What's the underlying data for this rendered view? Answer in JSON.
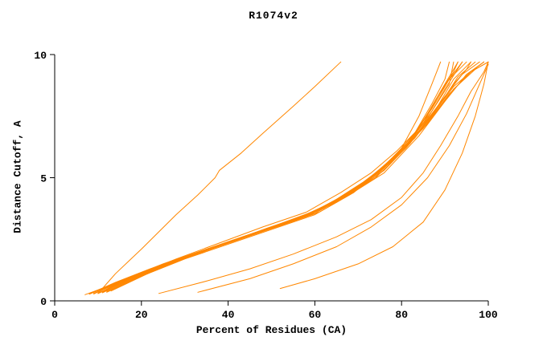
{
  "chart_data": {
    "type": "line",
    "title": "R1074v2",
    "xlabel": "Percent of Residues (CA)",
    "ylabel": "Distance Cutoff, A",
    "xlim": [
      0,
      100
    ],
    "ylim": [
      0,
      10
    ],
    "x_ticks": [
      0,
      20,
      40,
      60,
      80,
      100
    ],
    "y_ticks": [
      0,
      5,
      10
    ],
    "grid": false,
    "legend": false,
    "line_color": "#ff8700",
    "axis_color": "#000000",
    "series": [
      [
        [
          10,
          0.3
        ],
        [
          12,
          0.7
        ],
        [
          14,
          1.1
        ],
        [
          17,
          1.6
        ],
        [
          20,
          2.1
        ],
        [
          24,
          2.8
        ],
        [
          28,
          3.5
        ],
        [
          33,
          4.3
        ],
        [
          37,
          5.0
        ],
        [
          38,
          5.3
        ],
        [
          43,
          6.0
        ],
        [
          48,
          6.8
        ],
        [
          55,
          7.9
        ],
        [
          60,
          8.7
        ],
        [
          66,
          9.7
        ]
      ],
      [
        [
          8,
          0.3
        ],
        [
          15,
          0.8
        ],
        [
          25,
          1.5
        ],
        [
          35,
          2.1
        ],
        [
          45,
          2.7
        ],
        [
          55,
          3.3
        ],
        [
          62,
          3.8
        ],
        [
          70,
          4.6
        ],
        [
          75,
          5.3
        ],
        [
          80,
          6.2
        ],
        [
          84,
          7.5
        ],
        [
          87,
          8.8
        ],
        [
          89,
          9.7
        ]
      ],
      [
        [
          9,
          0.3
        ],
        [
          16,
          0.85
        ],
        [
          26,
          1.55
        ],
        [
          36,
          2.15
        ],
        [
          46,
          2.75
        ],
        [
          56,
          3.35
        ],
        [
          64,
          4.0
        ],
        [
          72,
          4.9
        ],
        [
          78,
          5.8
        ],
        [
          83,
          6.8
        ],
        [
          87,
          8.0
        ],
        [
          90,
          9.0
        ],
        [
          91,
          9.7
        ]
      ],
      [
        [
          10,
          0.3
        ],
        [
          17,
          0.9
        ],
        [
          27,
          1.6
        ],
        [
          37,
          2.2
        ],
        [
          47,
          2.8
        ],
        [
          57,
          3.4
        ],
        [
          65,
          4.1
        ],
        [
          73,
          5.0
        ],
        [
          79,
          6.0
        ],
        [
          85,
          7.2
        ],
        [
          89,
          8.5
        ],
        [
          92,
          9.3
        ],
        [
          93,
          9.7
        ]
      ],
      [
        [
          7,
          0.25
        ],
        [
          14,
          0.7
        ],
        [
          24,
          1.4
        ],
        [
          34,
          2.0
        ],
        [
          44,
          2.6
        ],
        [
          54,
          3.2
        ],
        [
          63,
          3.9
        ],
        [
          71,
          4.8
        ],
        [
          77,
          5.6
        ],
        [
          82,
          6.5
        ],
        [
          86,
          7.6
        ],
        [
          90,
          8.8
        ],
        [
          93,
          9.7
        ]
      ],
      [
        [
          11,
          0.35
        ],
        [
          18,
          0.95
        ],
        [
          28,
          1.65
        ],
        [
          38,
          2.25
        ],
        [
          48,
          2.85
        ],
        [
          58,
          3.45
        ],
        [
          66,
          4.2
        ],
        [
          74,
          5.1
        ],
        [
          80,
          6.1
        ],
        [
          86,
          7.4
        ],
        [
          90,
          8.6
        ],
        [
          94,
          9.7
        ]
      ],
      [
        [
          10,
          0.3
        ],
        [
          18,
          1.0
        ],
        [
          28,
          1.7
        ],
        [
          38,
          2.35
        ],
        [
          48,
          3.0
        ],
        [
          58,
          3.6
        ],
        [
          66,
          4.4
        ],
        [
          73,
          5.2
        ],
        [
          79,
          6.1
        ],
        [
          84,
          7.0
        ],
        [
          88,
          8.2
        ],
        [
          91,
          9.0
        ],
        [
          94,
          9.7
        ]
      ],
      [
        [
          9,
          0.28
        ],
        [
          17,
          0.92
        ],
        [
          27,
          1.58
        ],
        [
          37,
          2.18
        ],
        [
          47,
          2.78
        ],
        [
          57,
          3.38
        ],
        [
          66,
          4.15
        ],
        [
          74,
          5.05
        ],
        [
          81,
          6.3
        ],
        [
          87,
          7.8
        ],
        [
          91,
          9.0
        ],
        [
          95,
          9.7
        ]
      ],
      [
        [
          12,
          0.35
        ],
        [
          20,
          1.0
        ],
        [
          30,
          1.7
        ],
        [
          40,
          2.3
        ],
        [
          50,
          2.9
        ],
        [
          60,
          3.5
        ],
        [
          68,
          4.3
        ],
        [
          76,
          5.3
        ],
        [
          82,
          6.4
        ],
        [
          88,
          7.8
        ],
        [
          92,
          9.0
        ],
        [
          96,
          9.7
        ]
      ],
      [
        [
          8,
          0.27
        ],
        [
          16,
          0.85
        ],
        [
          26,
          1.5
        ],
        [
          36,
          2.1
        ],
        [
          46,
          2.7
        ],
        [
          56,
          3.3
        ],
        [
          65,
          4.0
        ],
        [
          74,
          5.0
        ],
        [
          81,
          6.2
        ],
        [
          87,
          7.5
        ],
        [
          92,
          8.8
        ],
        [
          95,
          9.4
        ],
        [
          96,
          9.7
        ]
      ],
      [
        [
          10,
          0.32
        ],
        [
          19,
          1.0
        ],
        [
          29,
          1.7
        ],
        [
          39,
          2.3
        ],
        [
          49,
          2.95
        ],
        [
          59,
          3.55
        ],
        [
          68,
          4.4
        ],
        [
          76,
          5.4
        ],
        [
          83,
          6.6
        ],
        [
          89,
          8.0
        ],
        [
          93,
          9.1
        ],
        [
          97,
          9.7
        ]
      ],
      [
        [
          11,
          0.33
        ],
        [
          20,
          1.05
        ],
        [
          30,
          1.75
        ],
        [
          40,
          2.4
        ],
        [
          50,
          3.0
        ],
        [
          60,
          3.65
        ],
        [
          69,
          4.5
        ],
        [
          77,
          5.6
        ],
        [
          84,
          6.9
        ],
        [
          90,
          8.3
        ],
        [
          94,
          9.2
        ],
        [
          98,
          9.7
        ]
      ],
      [
        [
          9,
          0.3
        ],
        [
          18,
          0.95
        ],
        [
          28,
          1.62
        ],
        [
          38,
          2.22
        ],
        [
          48,
          2.82
        ],
        [
          58,
          3.42
        ],
        [
          67,
          4.2
        ],
        [
          76,
          5.2
        ],
        [
          84,
          6.7
        ],
        [
          90,
          8.1
        ],
        [
          95,
          9.2
        ],
        [
          99,
          9.7
        ]
      ],
      [
        [
          12,
          0.38
        ],
        [
          21,
          1.1
        ],
        [
          31,
          1.8
        ],
        [
          41,
          2.45
        ],
        [
          51,
          3.05
        ],
        [
          61,
          3.7
        ],
        [
          70,
          4.6
        ],
        [
          78,
          5.8
        ],
        [
          85,
          7.0
        ],
        [
          91,
          8.4
        ],
        [
          96,
          9.3
        ],
        [
          100,
          9.7
        ]
      ],
      [
        [
          13,
          0.4
        ],
        [
          22,
          1.15
        ],
        [
          32,
          1.85
        ],
        [
          42,
          2.5
        ],
        [
          52,
          3.1
        ],
        [
          62,
          3.75
        ],
        [
          71,
          4.7
        ],
        [
          79,
          5.9
        ],
        [
          86,
          7.2
        ],
        [
          92,
          8.6
        ],
        [
          97,
          9.4
        ],
        [
          100,
          9.7
        ]
      ],
      [
        [
          10,
          0.3
        ],
        [
          20,
          1.05
        ],
        [
          30,
          1.72
        ],
        [
          40,
          2.35
        ],
        [
          50,
          2.95
        ],
        [
          60,
          3.55
        ],
        [
          70,
          4.55
        ],
        [
          78,
          5.7
        ],
        [
          86,
          7.3
        ],
        [
          92,
          8.7
        ],
        [
          96,
          9.3
        ],
        [
          99,
          9.7
        ]
      ],
      [
        [
          8,
          0.28
        ],
        [
          14,
          0.75
        ],
        [
          22,
          1.3
        ],
        [
          32,
          1.9
        ],
        [
          42,
          2.5
        ],
        [
          52,
          3.05
        ],
        [
          61,
          3.6
        ],
        [
          69,
          4.4
        ],
        [
          76,
          5.4
        ],
        [
          82,
          6.5
        ],
        [
          87,
          7.7
        ],
        [
          91,
          8.8
        ],
        [
          92,
          9.7
        ]
      ],
      [
        [
          24,
          0.3
        ],
        [
          35,
          0.8
        ],
        [
          45,
          1.3
        ],
        [
          55,
          1.9
        ],
        [
          65,
          2.6
        ],
        [
          73,
          3.3
        ],
        [
          80,
          4.2
        ],
        [
          85,
          5.2
        ],
        [
          89,
          6.3
        ],
        [
          93,
          7.5
        ],
        [
          96,
          8.5
        ],
        [
          99,
          9.3
        ],
        [
          100,
          9.7
        ]
      ],
      [
        [
          33,
          0.35
        ],
        [
          45,
          0.9
        ],
        [
          55,
          1.5
        ],
        [
          65,
          2.2
        ],
        [
          73,
          3.0
        ],
        [
          80,
          3.9
        ],
        [
          86,
          5.0
        ],
        [
          91,
          6.3
        ],
        [
          95,
          7.6
        ],
        [
          98,
          8.8
        ],
        [
          100,
          9.6
        ]
      ],
      [
        [
          52,
          0.5
        ],
        [
          60,
          0.9
        ],
        [
          70,
          1.5
        ],
        [
          78,
          2.2
        ],
        [
          85,
          3.2
        ],
        [
          90,
          4.5
        ],
        [
          94,
          6.0
        ],
        [
          97,
          7.5
        ],
        [
          99,
          8.8
        ],
        [
          100,
          9.7
        ]
      ]
    ]
  }
}
